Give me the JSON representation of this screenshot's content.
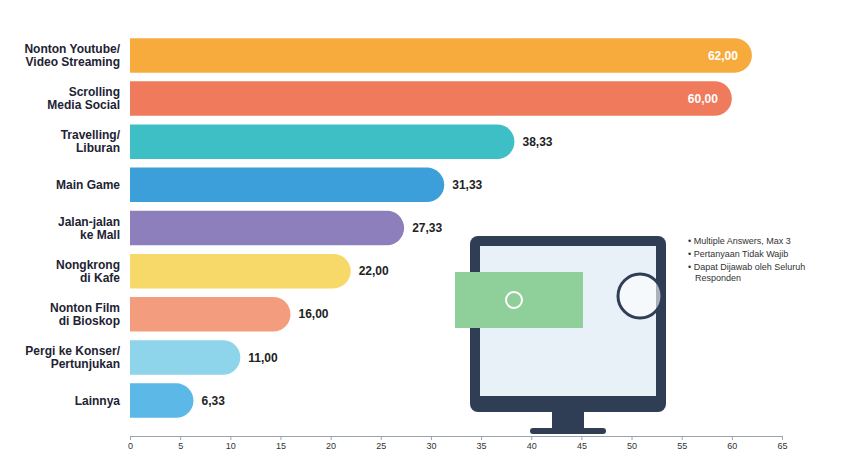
{
  "chart_data": {
    "type": "bar",
    "orientation": "horizontal",
    "categories": [
      "Nonton Youtube/\nVideo Streaming",
      "Scrolling\nMedia Social",
      "Travelling/\nLiburan",
      "Main Game",
      "Jalan-jalan\nke Mall",
      "Nongkrong\ndi Kafe",
      "Nonton Film\ndi Bioskop",
      "Pergi ke Konser/\nPertunjukan",
      "Lainnya"
    ],
    "values": [
      62.0,
      60.0,
      38.33,
      31.33,
      27.33,
      22.0,
      16.0,
      11.0,
      6.33
    ],
    "value_labels": [
      "62,00",
      "60,00",
      "38,33",
      "31,33",
      "27,33",
      "22,00",
      "16,00",
      "11,00",
      "6,33"
    ],
    "colors": [
      "#f7ab3d",
      "#ef7b5c",
      "#3dbfc5",
      "#3c9fd9",
      "#8c7fbb",
      "#f7d96a",
      "#f39c7e",
      "#8ed4ea",
      "#5cb8e6"
    ],
    "xlim": [
      0,
      65
    ],
    "xticks": [
      0,
      5,
      10,
      15,
      20,
      25,
      30,
      35,
      40,
      45,
      50,
      55,
      60,
      65
    ],
    "grid": false,
    "data_labels": true,
    "annotations": [
      "• Multiple Answers, Max 3",
      "• Pertanyaan Tidak Wajib",
      "• Dapat Dijawab oleh Seluruh Responden"
    ]
  }
}
